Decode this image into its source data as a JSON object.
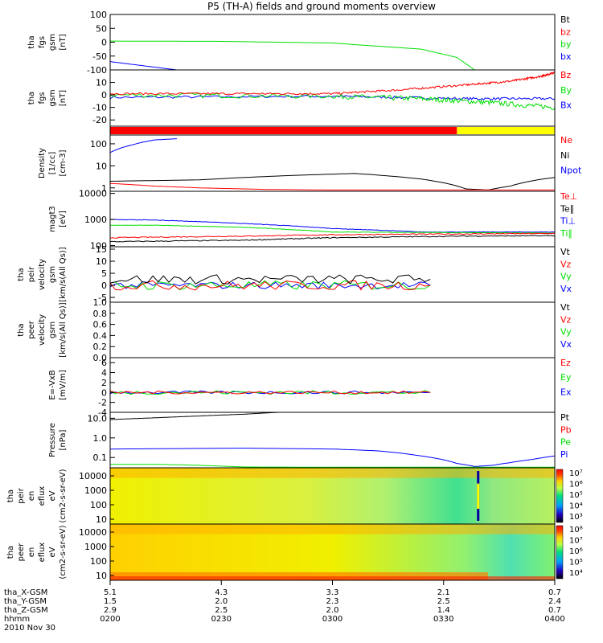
{
  "title": "P5 (TH-A) fields and ground moments overview",
  "colors": {
    "black": "#000000",
    "red": "#ff0000",
    "green": "#00e000",
    "blue": "#0000ff",
    "yellow": "#ffff00"
  },
  "chart_data": {
    "type": "line",
    "x_tick_labels": [
      "0200",
      "0230",
      "0300",
      "0330",
      "0400"
    ],
    "date_label": "2010 Nov 30",
    "ephemeris": [
      {
        "label": "tha_X-GSM",
        "values": [
          "5.1",
          "4.3",
          "3.3",
          "2.1",
          "0.7"
        ]
      },
      {
        "label": "tha_Y-GSM",
        "values": [
          "1.5",
          "2.0",
          "2.3",
          "2.5",
          "2.4"
        ]
      },
      {
        "label": "tha_Z-GSM",
        "values": [
          "2.9",
          "2.5",
          "2.0",
          "1.4",
          "0.7"
        ]
      },
      {
        "label": "hhmm",
        "values": [
          "0200",
          "0230",
          "0300",
          "0330",
          "0400"
        ]
      }
    ],
    "panels": [
      {
        "name": "fgs-gsm-1",
        "ylabel": [
          "tha",
          "fgs",
          "gsm",
          "[nT]"
        ],
        "ylim": [
          -100,
          100
        ],
        "log": false,
        "yticks": [
          "100",
          "50",
          "0",
          "-50",
          "-100"
        ],
        "legend": [
          {
            "text": "Bt",
            "color": "black"
          },
          {
            "text": "bz",
            "color": "red"
          },
          {
            "text": "by",
            "color": "green"
          },
          {
            "text": "bx",
            "color": "blue"
          }
        ],
        "series": [
          {
            "name": "by",
            "color": "green",
            "x": [
              0,
              0.25,
              0.5,
              0.7,
              0.78,
              0.82
            ],
            "y": [
              4,
              3,
              -3,
              -25,
              -55,
              -100
            ]
          },
          {
            "name": "bx",
            "color": "blue",
            "x": [
              0,
              0.04,
              0.1,
              0.15
            ],
            "y": [
              -70,
              -78,
              -90,
              -100
            ]
          }
        ]
      },
      {
        "name": "fgs-gsm-2",
        "ylabel": [
          "tha",
          "fgs",
          "gsm",
          "[nT]"
        ],
        "ylim": [
          -25,
          20
        ],
        "log": false,
        "yticks": [
          "10",
          "0",
          "-10",
          "-20"
        ],
        "legend": [
          {
            "text": "Bz",
            "color": "red"
          },
          {
            "text": "By",
            "color": "green"
          },
          {
            "text": "Bx",
            "color": "blue"
          }
        ],
        "series": [
          {
            "name": "Bx",
            "color": "blue",
            "noise": 1,
            "x": [
              0,
              0.5,
              0.8,
              1
            ],
            "y": [
              -2,
              -1,
              -3,
              -3
            ]
          },
          {
            "name": "By",
            "color": "green",
            "noise": 2,
            "x": [
              0,
              0.5,
              0.7,
              0.85,
              1
            ],
            "y": [
              0,
              -1,
              -3,
              -6,
              -10
            ]
          },
          {
            "name": "Bz",
            "color": "red",
            "noise": 0.8,
            "x": [
              0,
              0.3,
              0.5,
              0.65,
              0.8,
              0.9,
              0.97,
              1
            ],
            "y": [
              1,
              1,
              1,
              4,
              8,
              11,
              15,
              18
            ]
          }
        ]
      },
      {
        "name": "status-bar",
        "type": "bar",
        "segments": [
          {
            "from": 0,
            "to": 0.78,
            "color": "red"
          },
          {
            "from": 0.78,
            "to": 1,
            "color": "yellow"
          }
        ]
      },
      {
        "name": "density",
        "ylabel": [
          "Density",
          "[1/cc]",
          "[cm-3]"
        ],
        "ylim": [
          0.7,
          250
        ],
        "log": true,
        "yticks": [
          "100",
          "10",
          "1"
        ],
        "legend": [
          {
            "text": "Ne",
            "color": "red"
          },
          {
            "text": "Ni",
            "color": "black"
          },
          {
            "text": "Npot",
            "color": "blue"
          }
        ],
        "series": [
          {
            "name": "Npot",
            "color": "blue",
            "x": [
              0,
              0.05,
              0.1,
              0.15
            ],
            "y": [
              40,
              90,
              150,
              170
            ]
          },
          {
            "name": "Ni",
            "color": "black",
            "x": [
              0,
              0.2,
              0.4,
              0.55,
              0.7,
              0.8,
              0.85,
              0.9,
              1
            ],
            "y": [
              2,
              2.3,
              3.6,
              4.5,
              2.5,
              0.9,
              0.8,
              1.2,
              3
            ]
          },
          {
            "name": "Ne",
            "color": "red",
            "x": [
              0,
              0.1,
              0.2,
              0.35,
              0.5,
              1
            ],
            "y": [
              1.6,
              1.2,
              1.0,
              0.85,
              0.8,
              0.8
            ]
          }
        ]
      },
      {
        "name": "temperature",
        "ylabel": [
          "magt3",
          "[eV]"
        ],
        "ylim": [
          90,
          12000
        ],
        "log": true,
        "yticks": [
          "10000",
          "1000",
          "100"
        ],
        "legend": [
          {
            "text": "Te⊥",
            "color": "red"
          },
          {
            "text": "Te∥",
            "color": "black"
          },
          {
            "text": "Ti⊥",
            "color": "blue"
          },
          {
            "text": "Ti∥",
            "color": "green"
          }
        ],
        "series": [
          {
            "name": "Ti⊥",
            "color": "blue",
            "noise": 0.02,
            "x": [
              0,
              0.1,
              0.3,
              0.5,
              0.7,
              1
            ],
            "y": [
              1000,
              950,
              700,
              450,
              330,
              330
            ]
          },
          {
            "name": "Ti∥",
            "color": "green",
            "noise": 0.02,
            "x": [
              0,
              0.1,
              0.3,
              0.5,
              1
            ],
            "y": [
              600,
              600,
              500,
              330,
              300
            ]
          },
          {
            "name": "Te⊥",
            "color": "red",
            "noise": 0.04,
            "x": [
              0,
              0.3,
              0.5,
              0.8,
              1
            ],
            "y": [
              200,
              230,
              260,
              280,
              290
            ]
          },
          {
            "name": "Te∥",
            "color": "black",
            "noise": 0.04,
            "x": [
              0,
              0.3,
              0.5,
              0.8,
              1
            ],
            "y": [
              140,
              160,
              200,
              230,
              240
            ]
          }
        ]
      },
      {
        "name": "velocity-peir",
        "ylabel": [
          "tha",
          "peir",
          "velocity",
          "gsm",
          "[km/s(All Qs)]"
        ],
        "ylim": [
          -7,
          16
        ],
        "log": false,
        "yticks": [
          "15",
          "10",
          "5",
          "0",
          "-5"
        ],
        "legend": [
          {
            "text": "Vt",
            "color": "black"
          },
          {
            "text": "Vz",
            "color": "red"
          },
          {
            "text": "Vy",
            "color": "green"
          },
          {
            "text": "Vx",
            "color": "blue"
          }
        ],
        "series": [
          {
            "name": "Vx",
            "color": "blue",
            "noise": 1.5,
            "x": [
              0,
              0.72
            ],
            "y": [
              0,
              0
            ]
          },
          {
            "name": "Vy",
            "color": "green",
            "noise": 2,
            "x": [
              0,
              0.72
            ],
            "y": [
              0,
              0
            ]
          },
          {
            "name": "Vz",
            "color": "red",
            "noise": 2,
            "x": [
              0,
              0.72
            ],
            "y": [
              0,
              0
            ]
          },
          {
            "name": "Vt",
            "color": "black",
            "noise": 2,
            "x": [
              0,
              0.72
            ],
            "y": [
              2.5,
              2.5
            ]
          }
        ]
      },
      {
        "name": "velocity-peer",
        "ylabel": [
          "tha",
          "peer",
          "velocity",
          "gsm",
          "[km/s(All Qs)]"
        ],
        "ylim": [
          0,
          1
        ],
        "log": false,
        "yticks": [
          "1.0",
          "0.8",
          "0.6",
          "0.4",
          "0.2",
          "0.0"
        ],
        "legend": [
          {
            "text": "Vt",
            "color": "black"
          },
          {
            "text": "Vz",
            "color": "red"
          },
          {
            "text": "Vy",
            "color": "green"
          },
          {
            "text": "Vx",
            "color": "blue"
          }
        ],
        "series": []
      },
      {
        "name": "efield",
        "ylabel": [
          "E=-VxB",
          "[mV/m]"
        ],
        "ylim": [
          -4,
          7
        ],
        "log": false,
        "yticks": [
          "6",
          "4",
          "2",
          "0",
          "-2",
          "-4"
        ],
        "legend": [
          {
            "text": "Ez",
            "color": "red"
          },
          {
            "text": "Ey",
            "color": "green"
          },
          {
            "text": "Ex",
            "color": "blue"
          }
        ],
        "series": [
          {
            "name": "Ex",
            "color": "blue",
            "noise": 0.3,
            "x": [
              0,
              0.72
            ],
            "y": [
              0,
              0
            ]
          },
          {
            "name": "Ey",
            "color": "green",
            "noise": 0.4,
            "x": [
              0,
              0.72
            ],
            "y": [
              0,
              0
            ]
          },
          {
            "name": "Ez",
            "color": "red",
            "noise": 0.3,
            "x": [
              0,
              0.72
            ],
            "y": [
              0,
              0
            ]
          }
        ]
      },
      {
        "name": "pressure",
        "ylabel": [
          "Pressure",
          "[nPa]"
        ],
        "ylim": [
          0.03,
          20
        ],
        "log": true,
        "yticks": [
          "10.0",
          "1.0",
          "0.1"
        ],
        "legend": [
          {
            "text": "Pt",
            "color": "black"
          },
          {
            "text": "Pb",
            "color": "red"
          },
          {
            "text": "Pe",
            "color": "green"
          },
          {
            "text": "Pi",
            "color": "blue"
          }
        ],
        "series": [
          {
            "name": "Pt",
            "color": "black",
            "x": [
              0,
              0.1,
              0.2,
              0.3,
              0.38
            ],
            "y": [
              8.5,
              10.5,
              13,
              16,
              20
            ]
          },
          {
            "name": "Pi",
            "color": "blue",
            "x": [
              0,
              0.3,
              0.5,
              0.6,
              0.7,
              0.78,
              0.82,
              0.86,
              0.9,
              0.95,
              1
            ],
            "y": [
              0.27,
              0.3,
              0.27,
              0.22,
              0.12,
              0.05,
              0.035,
              0.04,
              0.055,
              0.08,
              0.12
            ]
          },
          {
            "name": "Pe",
            "color": "green",
            "x": [
              0,
              0.1,
              0.2,
              0.3,
              0.5,
              0.7,
              1
            ],
            "y": [
              0.045,
              0.045,
              0.04,
              0.033,
              0.032,
              0.032,
              0.032
            ]
          }
        ]
      },
      {
        "name": "peir-spectrogram",
        "type": "spectrogram",
        "ylabel": [
          "tha",
          "peir",
          "en",
          "eflux",
          "eV",
          "(cm2-s-sr-eV)"
        ],
        "yticks": [
          "10000",
          "1000",
          "100",
          "10"
        ],
        "colorbar_labels": [
          "10⁷",
          "10⁶",
          "10⁵",
          "10⁴",
          "10³"
        ]
      },
      {
        "name": "peer-spectrogram",
        "type": "spectrogram",
        "ylabel": [
          "tha",
          "peer",
          "en",
          "eflux",
          "eV",
          "(cm2-s-sr-eV)"
        ],
        "yticks": [
          "10000",
          "1000",
          "100",
          "10"
        ],
        "colorbar_labels": [
          "10⁸",
          "10⁷",
          "10⁶",
          "10⁵",
          "10⁴"
        ]
      }
    ]
  }
}
